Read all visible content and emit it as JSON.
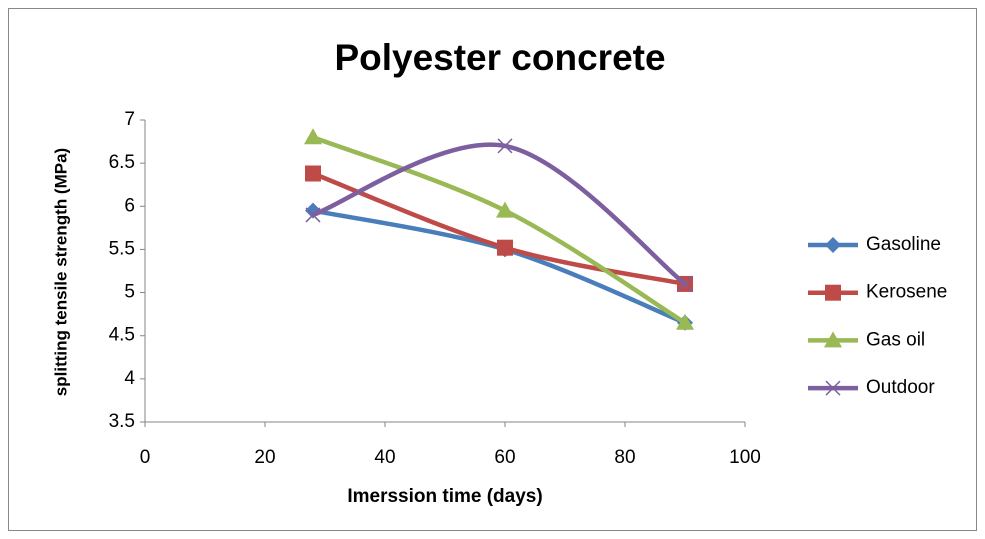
{
  "chart_data": {
    "type": "scatter-smooth",
    "title": "Polyester concrete",
    "x_label": "Imerssion time (days)",
    "y_label": "splitting tensile strength (MPa)",
    "x": [
      28,
      60,
      90
    ],
    "series": [
      {
        "name": "Gasoline",
        "color": "#4a7ebb",
        "marker": "diamond",
        "values": [
          5.95,
          5.5,
          4.65
        ]
      },
      {
        "name": "Kerosene",
        "color": "#be4b48",
        "marker": "square",
        "values": [
          6.38,
          5.52,
          5.1
        ]
      },
      {
        "name": "Gas oil",
        "color": "#98b954",
        "marker": "triangle",
        "values": [
          6.8,
          5.95,
          4.65
        ]
      },
      {
        "name": "Outdoor",
        "color": "#7d5fa0",
        "marker": "x",
        "values": [
          5.9,
          6.7,
          5.1
        ]
      }
    ],
    "xlim": [
      0,
      100
    ],
    "xticks": [
      0,
      20,
      40,
      60,
      80,
      100
    ],
    "ylim": [
      3.5,
      7
    ],
    "yticks": [
      3.5,
      4,
      4.5,
      5,
      5.5,
      6,
      6.5,
      7
    ],
    "grid": false,
    "legend": "right"
  }
}
